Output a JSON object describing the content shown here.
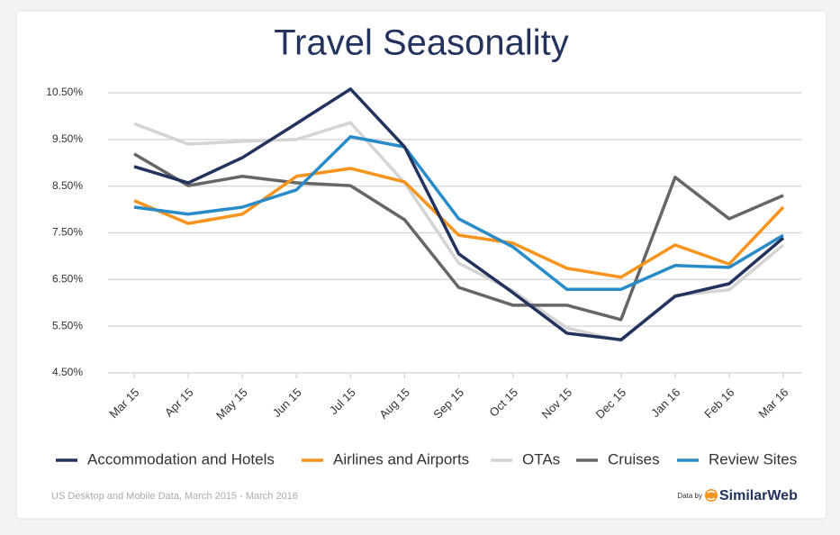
{
  "chart_data": {
    "type": "line",
    "title": "Travel Seasonality",
    "categories": [
      "Mar 15",
      "Apr 15",
      "May 15",
      "Jun 15",
      "Jul 15",
      "Aug 15",
      "Sep 15",
      "Oct 15",
      "Nov 15",
      "Dec 15",
      "Jan 16",
      "Feb 16",
      "Mar 16"
    ],
    "series": [
      {
        "name": "Accommodation and Hotels",
        "color": "#22335e",
        "values": [
          8.92,
          8.57,
          9.11,
          9.84,
          10.58,
          9.34,
          7.05,
          6.22,
          5.35,
          5.21,
          6.14,
          6.41,
          7.39
        ]
      },
      {
        "name": "Airlines and Airports",
        "color": "#f7941d",
        "values": [
          8.19,
          7.7,
          7.9,
          8.71,
          8.88,
          8.59,
          7.45,
          7.28,
          6.74,
          6.55,
          7.24,
          6.83,
          8.05
        ]
      },
      {
        "name": "OTAs",
        "color": "#d4d4d4",
        "values": [
          9.84,
          9.4,
          9.46,
          9.5,
          9.86,
          8.57,
          6.85,
          6.26,
          5.46,
          5.19,
          6.16,
          6.28,
          7.24
        ]
      },
      {
        "name": "Cruises",
        "color": "#666666",
        "values": [
          9.19,
          8.51,
          8.71,
          8.57,
          8.51,
          7.78,
          6.33,
          5.95,
          5.95,
          5.64,
          8.69,
          7.8,
          8.3
        ]
      },
      {
        "name": "Review Sites",
        "color": "#2a8bc9",
        "values": [
          8.05,
          7.9,
          8.05,
          8.42,
          9.56,
          9.34,
          7.8,
          7.2,
          6.29,
          6.29,
          6.8,
          6.76,
          7.45
        ]
      }
    ],
    "ylim": [
      4.5,
      10.5
    ],
    "yticks": [
      {
        "value": 4.5,
        "label": "4.50%"
      },
      {
        "value": 5.5,
        "label": "5.50%"
      },
      {
        "value": 6.5,
        "label": "6.50%"
      },
      {
        "value": 7.5,
        "label": "7.50%"
      },
      {
        "value": 8.5,
        "label": "8.50%"
      },
      {
        "value": 9.5,
        "label": "9.50%"
      },
      {
        "value": 10.5,
        "label": "10.50%"
      }
    ],
    "grid": true,
    "legend": "bottom",
    "footnote": "US Desktop and Mobile Data, March 2015 - March 2016",
    "credit_prefix": "Data by",
    "credit_brand": "SimilarWeb"
  }
}
